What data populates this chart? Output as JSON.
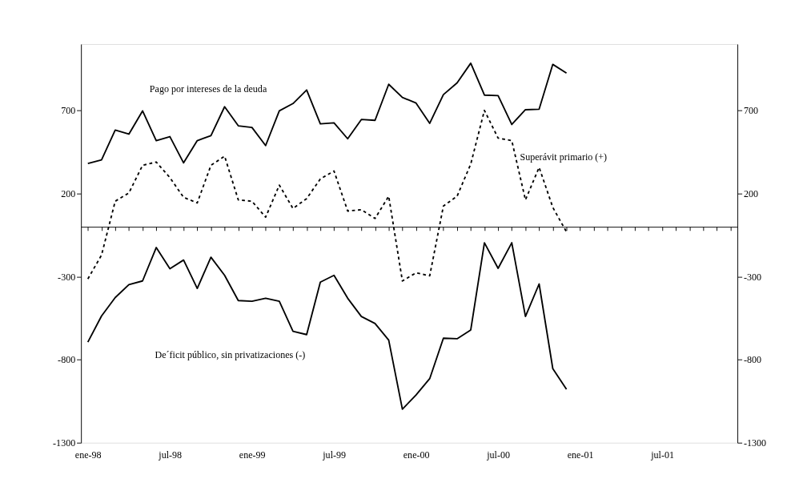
{
  "chart_data": {
    "type": "line",
    "categories": [
      "ene-98",
      null,
      null,
      null,
      null,
      null,
      "jul-98",
      null,
      null,
      null,
      null,
      null,
      "ene-99",
      null,
      null,
      null,
      null,
      null,
      "jul-99",
      null,
      null,
      null,
      null,
      null,
      "ene-00",
      null,
      null,
      null,
      null,
      null,
      "jul-00",
      null,
      null,
      null,
      null,
      null,
      "ene-01",
      null,
      null,
      null,
      null,
      null,
      "jul-01",
      null,
      null,
      null,
      null,
      null
    ],
    "series": [
      {
        "name": "Pago por intereses de la deuda",
        "color": "#000000",
        "line_style": "solid",
        "values": [
          381,
          403,
          582,
          558,
          698,
          519,
          543,
          385,
          519,
          549,
          723,
          608,
          598,
          489,
          698,
          742,
          824,
          620,
          626,
          530,
          646,
          641,
          858,
          779,
          745,
          623,
          796,
          866,
          985,
          793,
          790,
          616,
          705,
          708,
          978,
          925,
          null,
          null,
          null,
          null,
          null,
          null,
          null,
          null,
          null,
          null,
          null,
          null
        ]
      },
      {
        "name": "Superávit primario (+)",
        "color": "#000000",
        "line_style": "dashed",
        "values": [
          -314,
          -170,
          154,
          204,
          370,
          390,
          296,
          177,
          144,
          370,
          425,
          162,
          154,
          58,
          251,
          110,
          170,
          288,
          336,
          95,
          103,
          50,
          184,
          -326,
          -277,
          -295,
          125,
          184,
          378,
          701,
          534,
          519,
          162,
          358,
          117,
          -31,
          null,
          null,
          null,
          null,
          null,
          null,
          null,
          null,
          null,
          null,
          null,
          null
        ]
      },
      {
        "name": "De´ficit público, sin privatizaciones (-)",
        "color": "#000000",
        "line_style": "solid",
        "values": [
          -694,
          -537,
          -426,
          -348,
          -326,
          -125,
          -252,
          -200,
          -371,
          -183,
          -292,
          -444,
          -448,
          -430,
          -448,
          -629,
          -649,
          -333,
          -292,
          -430,
          -540,
          -582,
          -682,
          -1098,
          -1013,
          -914,
          -671,
          -674,
          -621,
          -96,
          -250,
          -96,
          -540,
          -344,
          -854,
          -978,
          null,
          null,
          null,
          null,
          null,
          null,
          null,
          null,
          null,
          null,
          null,
          null
        ]
      }
    ],
    "ylim": [
      -1300,
      1100
    ],
    "yticks": [
      -1300,
      -800,
      -300,
      200,
      700
    ],
    "y2lim": [
      -1300,
      1100
    ],
    "y2ticks": [
      -1300,
      -800,
      -300,
      200,
      700
    ],
    "grid": false,
    "marker": "none"
  }
}
